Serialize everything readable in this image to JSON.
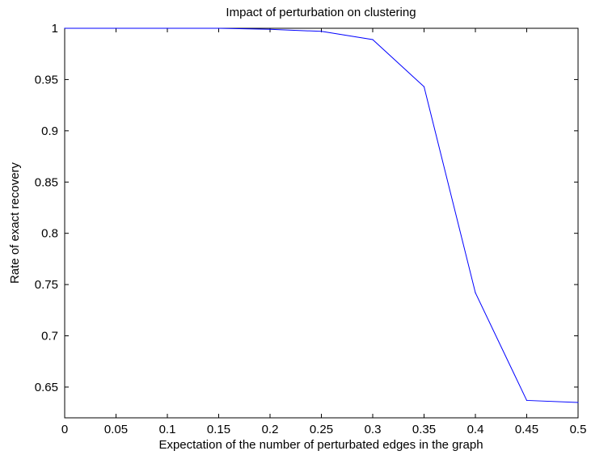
{
  "chart_data": {
    "type": "line",
    "title": "Impact of perturbation on clustering",
    "xlabel": "Expectation of the number of perturbated edges in the graph",
    "ylabel": "Rate of exact recovery",
    "xlim": [
      0,
      0.5
    ],
    "ylim": [
      0.62,
      1.0
    ],
    "x_ticks": [
      "0",
      "0.05",
      "0.1",
      "0.15",
      "0.2",
      "0.25",
      "0.3",
      "0.35",
      "0.4",
      "0.45",
      "0.5"
    ],
    "y_ticks": [
      "0.65",
      "0.7",
      "0.75",
      "0.8",
      "0.85",
      "0.9",
      "0.95",
      "1"
    ],
    "grid": false,
    "series": [
      {
        "color": "#0000ff",
        "x": [
          0,
          0.05,
          0.1,
          0.15,
          0.2,
          0.25,
          0.3,
          0.35,
          0.4,
          0.45,
          0.5
        ],
        "y": [
          1.0,
          1.0,
          1.0,
          1.0,
          0.999,
          0.997,
          0.989,
          0.943,
          0.742,
          0.637,
          0.635
        ]
      }
    ]
  }
}
